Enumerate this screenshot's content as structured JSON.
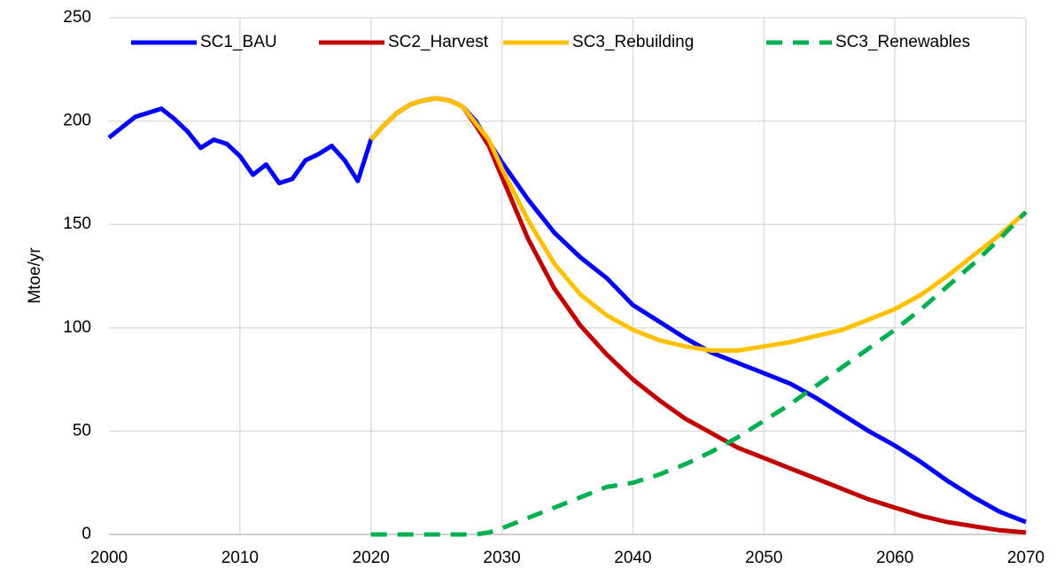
{
  "chart_data": {
    "type": "line",
    "y_label": "Mtoe/yr",
    "x": [
      2000,
      2001,
      2002,
      2003,
      2004,
      2005,
      2006,
      2007,
      2008,
      2009,
      2010,
      2011,
      2012,
      2013,
      2014,
      2015,
      2016,
      2017,
      2018,
      2019,
      2020,
      2021,
      2022,
      2023,
      2024,
      2025,
      2026,
      2027,
      2028,
      2029,
      2030,
      2032,
      2034,
      2036,
      2038,
      2040,
      2042,
      2044,
      2046,
      2048,
      2050,
      2052,
      2054,
      2056,
      2058,
      2060,
      2062,
      2064,
      2066,
      2068,
      2070
    ],
    "series": [
      {
        "name": "SC1_BAU",
        "color": "#0000ff",
        "dashed": false,
        "values": [
          192,
          197,
          202,
          204,
          206,
          201,
          195,
          187,
          191,
          189,
          183,
          174,
          179,
          170,
          172,
          181,
          184,
          188,
          181,
          171,
          191,
          198,
          204,
          208,
          210,
          211,
          210,
          207,
          200,
          190,
          180,
          162,
          146,
          134,
          124,
          111,
          103,
          95,
          88,
          83,
          78,
          73,
          66,
          58,
          50,
          43,
          35,
          26,
          18,
          11,
          6
        ]
      },
      {
        "name": "SC2_Harvest",
        "color": "#c00000",
        "dashed": false,
        "values": [
          null,
          null,
          null,
          null,
          null,
          null,
          null,
          null,
          null,
          null,
          null,
          null,
          null,
          null,
          null,
          null,
          null,
          null,
          null,
          null,
          191,
          198,
          204,
          208,
          210,
          211,
          210,
          207,
          198,
          188,
          173,
          143,
          119,
          101,
          87,
          75,
          65,
          56,
          49,
          42,
          37,
          32,
          27,
          22,
          17,
          13,
          9,
          6,
          4,
          2,
          1
        ]
      },
      {
        "name": "SC3_Rebuilding",
        "color": "#ffc000",
        "dashed": false,
        "values": [
          null,
          null,
          null,
          null,
          null,
          null,
          null,
          null,
          null,
          null,
          null,
          null,
          null,
          null,
          null,
          null,
          null,
          null,
          null,
          null,
          191,
          198,
          204,
          208,
          210,
          211,
          210,
          207,
          199,
          191,
          177,
          152,
          131,
          116,
          106,
          99,
          94,
          91,
          89,
          89,
          91,
          93,
          96,
          99,
          104,
          109,
          116,
          125,
          135,
          145,
          156
        ]
      },
      {
        "name": "SC3_Renewables",
        "color": "#00b050",
        "dashed": true,
        "values": [
          null,
          null,
          null,
          null,
          null,
          null,
          null,
          null,
          null,
          null,
          null,
          null,
          null,
          null,
          null,
          null,
          null,
          null,
          null,
          null,
          0,
          0,
          0,
          0,
          0,
          0,
          0,
          0,
          0,
          1,
          3,
          8,
          13,
          18,
          23,
          25,
          29,
          34,
          40,
          47,
          55,
          63,
          72,
          81,
          90,
          99,
          109,
          120,
          131,
          143,
          156
        ]
      }
    ],
    "xlim": [
      2000,
      2070
    ],
    "xticks": [
      2000,
      2010,
      2020,
      2030,
      2040,
      2050,
      2060,
      2070
    ],
    "ylim": [
      0,
      250
    ],
    "yticks": [
      0,
      50,
      100,
      150,
      200,
      250
    ],
    "grid": true,
    "legend": "top"
  }
}
